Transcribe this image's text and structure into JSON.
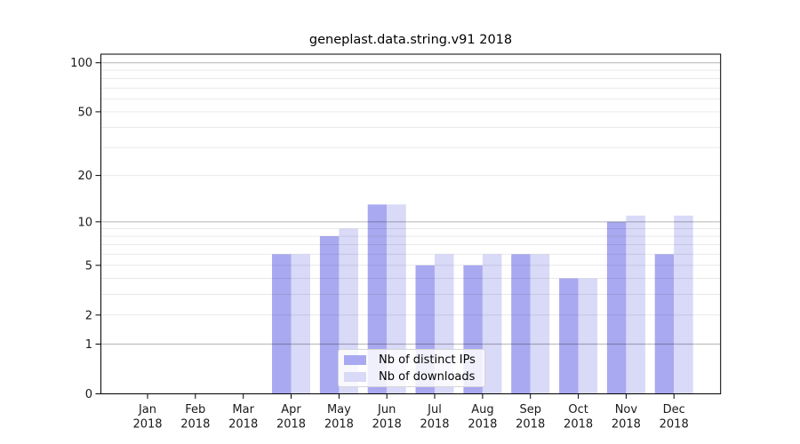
{
  "figure": {
    "title": "geneplast.data.string.v91 2018"
  },
  "chart_data": {
    "type": "bar",
    "title": "geneplast.data.string.v91 2018",
    "categories": [
      "Jan",
      "Feb",
      "Mar",
      "Apr",
      "May",
      "Jun",
      "Jul",
      "Aug",
      "Sep",
      "Oct",
      "Nov",
      "Dec"
    ],
    "x_tick_sublabel": "2018",
    "series": [
      {
        "name": "Nb of distinct IPs",
        "color": "#a9a9f1",
        "values": [
          0,
          0,
          0,
          6,
          8,
          13,
          5,
          5,
          6,
          4,
          10,
          6
        ]
      },
      {
        "name": "Nb of downloads",
        "color": "#d9d9f8",
        "values": [
          0,
          0,
          0,
          6,
          9,
          13,
          6,
          6,
          6,
          4,
          11,
          11
        ]
      }
    ],
    "xlabel": "",
    "ylabel": "",
    "y_scale": "log10(1+v)",
    "ylim": [
      0,
      110
    ],
    "y_ticks": [
      0,
      1,
      2,
      5,
      10,
      20,
      50,
      100
    ],
    "y_major_gridlines": [
      1,
      10,
      100
    ],
    "y_minor_gridlines": [
      2,
      3,
      4,
      5,
      6,
      7,
      8,
      9,
      20,
      30,
      40,
      50,
      60,
      70,
      80,
      90
    ],
    "grid": true,
    "legend_position": "lower center",
    "colors": {
      "axis": "#000000",
      "tick_text": "#1a1a1a",
      "major_grid": "rgba(0,0,0,0.26)",
      "minor_grid": "rgba(0,0,0,0.085)"
    }
  }
}
